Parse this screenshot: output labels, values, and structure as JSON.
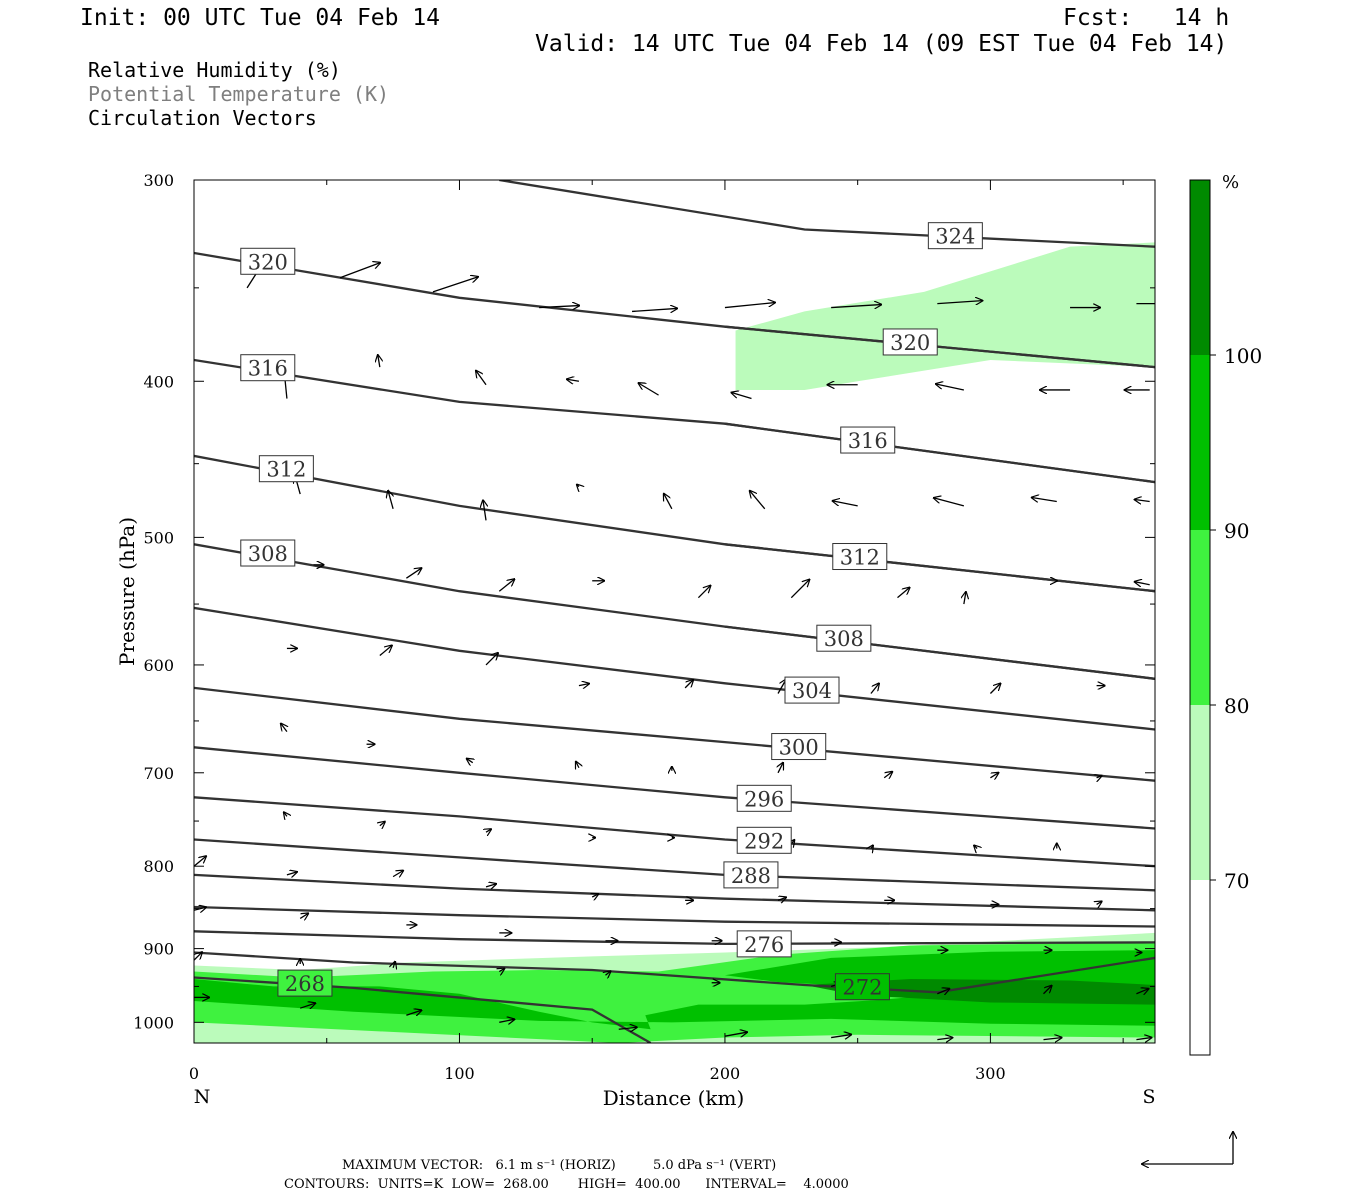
{
  "header": {
    "init": "Init: 00 UTC Tue 04 Feb 14",
    "fcst": "Fcst:   14 h",
    "valid": "Valid: 14 UTC Tue 04 Feb 14 (09 EST Tue 04 Feb 14)"
  },
  "legend_lines": [
    {
      "text": "Relative Humidity (%)",
      "color": "#000000"
    },
    {
      "text": "Potential Temperature (K)",
      "color": "#7f7f7f"
    },
    {
      "text": "Circulation Vectors",
      "color": "#000000"
    }
  ],
  "footer": {
    "line1": "MAXIMUM VECTOR:   6.1 m s⁻¹ (HORIZ)         5.0 dPa s⁻¹ (VERT)",
    "line2": "CONTOURS:  UNITS=K  LOW=  268.00       HIGH=  400.00      INTERVAL=    4.0000"
  },
  "colors": {
    "rh70": "#bbfbbb",
    "rh80": "#3ff23f",
    "rh90": "#00c000",
    "rh100": "#008a00",
    "contour": "#333333",
    "vector": "#000000"
  },
  "chart_data": {
    "type": "cross-section",
    "xlabel": "Distance (km)",
    "ylabel": "Pressure (hPa)",
    "xlim": [
      0,
      362
    ],
    "ylim": [
      300,
      1030
    ],
    "y_log": true,
    "x_ticks": [
      0,
      100,
      200,
      300
    ],
    "y_ticks": [
      300,
      400,
      500,
      600,
      700,
      800,
      900,
      1000
    ],
    "x_end_labels": {
      "left": "N",
      "right": "S"
    },
    "colorbar": {
      "unit": "%",
      "levels": [
        70,
        80,
        90,
        100
      ],
      "colors": [
        "#ffffff",
        "#bbfbbb",
        "#3ff23f",
        "#00c000",
        "#008a00"
      ]
    },
    "theta_contours": [
      {
        "value": 324,
        "points": [
          [
            115,
            300
          ],
          [
            230,
            322
          ],
          [
            362,
            330
          ]
        ],
        "label_x": 277
      },
      {
        "value": 320,
        "points": [
          [
            0,
            333
          ],
          [
            100,
            355
          ],
          [
            200,
            370
          ],
          [
            362,
            392
          ]
        ],
        "label_x": 18
      },
      {
        "value": 320,
        "points": [
          [
            200,
            370
          ],
          [
            362,
            392
          ]
        ],
        "label_x": 260
      },
      {
        "value": 316,
        "points": [
          [
            0,
            388
          ],
          [
            100,
            412
          ],
          [
            200,
            425
          ],
          [
            362,
            462
          ]
        ],
        "label_x": 18
      },
      {
        "value": 316,
        "points": [
          [
            200,
            425
          ],
          [
            362,
            462
          ]
        ],
        "label_x": 244
      },
      {
        "value": 312,
        "points": [
          [
            0,
            445
          ],
          [
            100,
            478
          ],
          [
            200,
            505
          ],
          [
            362,
            540
          ]
        ],
        "label_x": 25
      },
      {
        "value": 312,
        "points": [
          [
            200,
            505
          ],
          [
            362,
            540
          ]
        ],
        "label_x": 241
      },
      {
        "value": 308,
        "points": [
          [
            0,
            505
          ],
          [
            100,
            540
          ],
          [
            200,
            568
          ],
          [
            362,
            612
          ]
        ],
        "label_x": 18
      },
      {
        "value": 308,
        "points": [
          [
            200,
            568
          ],
          [
            362,
            612
          ]
        ],
        "label_x": 235
      },
      {
        "value": 304,
        "points": [
          [
            0,
            553
          ],
          [
            100,
            588
          ],
          [
            200,
            616
          ],
          [
            362,
            658
          ]
        ],
        "label_x": 223
      },
      {
        "value": 300,
        "points": [
          [
            0,
            620
          ],
          [
            100,
            648
          ],
          [
            200,
            670
          ],
          [
            362,
            708
          ]
        ],
        "label_x": 218
      },
      {
        "value": 296,
        "points": [
          [
            0,
            675
          ],
          [
            100,
            700
          ],
          [
            200,
            725
          ],
          [
            362,
            758
          ]
        ],
        "label_x": 205
      },
      {
        "value": 292,
        "points": [
          [
            0,
            725
          ],
          [
            100,
            745
          ],
          [
            200,
            770
          ],
          [
            362,
            800
          ]
        ],
        "label_x": 205
      },
      {
        "value": 288,
        "points": [
          [
            0,
            770
          ],
          [
            100,
            790
          ],
          [
            200,
            810
          ],
          [
            362,
            828
          ]
        ],
        "label_x": 200
      },
      {
        "value": 284,
        "points": [
          [
            0,
            810
          ],
          [
            100,
            826
          ],
          [
            200,
            838
          ],
          [
            362,
            852
          ]
        ],
        "label_x": null
      },
      {
        "value": 280,
        "points": [
          [
            0,
            848
          ],
          [
            100,
            858
          ],
          [
            200,
            866
          ],
          [
            362,
            872
          ]
        ],
        "label_x": null
      },
      {
        "value": 276,
        "points": [
          [
            0,
            878
          ],
          [
            100,
            888
          ],
          [
            200,
            894
          ],
          [
            362,
            892
          ]
        ],
        "label_x": 205
      },
      {
        "value": 272,
        "points": [
          [
            0,
            905
          ],
          [
            60,
            918
          ],
          [
            150,
            928
          ],
          [
            230,
            948
          ],
          [
            280,
            958
          ],
          [
            362,
            912
          ]
        ],
        "label_x": 242
      },
      {
        "value": 268,
        "points": [
          [
            0,
            938
          ],
          [
            60,
            952
          ],
          [
            150,
            982
          ],
          [
            172,
            1030
          ]
        ],
        "label_x": 32
      }
    ],
    "rh_regions": [
      {
        "level": 70,
        "points": [
          [
            0,
            922
          ],
          [
            40,
            928
          ],
          [
            80,
            918
          ],
          [
            150,
            910
          ],
          [
            200,
            905
          ],
          [
            260,
            898
          ],
          [
            362,
            880
          ],
          [
            362,
            1030
          ],
          [
            0,
            1030
          ]
        ]
      },
      {
        "level": 70,
        "points": [
          [
            204,
            372
          ],
          [
            230,
            362
          ],
          [
            275,
            352
          ],
          [
            330,
            330
          ],
          [
            362,
            328
          ],
          [
            362,
            392
          ],
          [
            300,
            388
          ],
          [
            250,
            400
          ],
          [
            230,
            405
          ],
          [
            204,
            405
          ]
        ]
      },
      {
        "level": 80,
        "points": [
          [
            0,
            930
          ],
          [
            40,
            938
          ],
          [
            90,
            930
          ],
          [
            130,
            928
          ],
          [
            175,
            930
          ],
          [
            220,
            908
          ],
          [
            270,
            896
          ],
          [
            362,
            892
          ],
          [
            362,
            1022
          ],
          [
            250,
            1018
          ],
          [
            200,
            1022
          ],
          [
            160,
            1030
          ],
          [
            0,
            1000
          ]
        ]
      },
      {
        "level": 90,
        "points": [
          [
            0,
            940
          ],
          [
            30,
            950
          ],
          [
            70,
            950
          ],
          [
            100,
            960
          ],
          [
            130,
            985
          ],
          [
            150,
            1000
          ],
          [
            172,
            1010
          ],
          [
            170,
            990
          ],
          [
            190,
            975
          ],
          [
            230,
            975
          ],
          [
            260,
            968
          ],
          [
            290,
            958
          ],
          [
            362,
            960
          ],
          [
            362,
            1005
          ],
          [
            300,
            1002
          ],
          [
            240,
            995
          ],
          [
            180,
            1000
          ],
          [
            130,
            998
          ],
          [
            60,
            985
          ],
          [
            0,
            970
          ]
        ]
      },
      {
        "level": 90,
        "points": [
          [
            200,
            935
          ],
          [
            240,
            912
          ],
          [
            300,
            904
          ],
          [
            362,
            902
          ],
          [
            362,
            960
          ],
          [
            300,
            958
          ],
          [
            260,
            952
          ],
          [
            220,
            944
          ]
        ]
      },
      {
        "level": 100,
        "points": [
          [
            230,
            948
          ],
          [
            270,
            940
          ],
          [
            330,
            942
          ],
          [
            362,
            948
          ],
          [
            362,
            975
          ],
          [
            300,
            972
          ],
          [
            250,
            962
          ]
        ]
      }
    ],
    "vectors": [
      [
        20,
        350,
        16,
        -25
      ],
      [
        55,
        345,
        40,
        -15
      ],
      [
        90,
        352,
        45,
        -15
      ],
      [
        130,
        360,
        40,
        -2
      ],
      [
        165,
        362,
        45,
        -3
      ],
      [
        200,
        360,
        50,
        -5
      ],
      [
        240,
        360,
        50,
        -3
      ],
      [
        280,
        358,
        45,
        -3
      ],
      [
        330,
        360,
        30,
        0
      ],
      [
        355,
        358,
        40,
        0
      ],
      [
        35,
        410,
        -3,
        -30
      ],
      [
        70,
        392,
        -2,
        -12
      ],
      [
        110,
        402,
        -10,
        -14
      ],
      [
        145,
        400,
        -12,
        -2
      ],
      [
        175,
        408,
        -20,
        -12
      ],
      [
        210,
        410,
        -20,
        -6
      ],
      [
        250,
        402,
        -30,
        0
      ],
      [
        290,
        405,
        -28,
        -6
      ],
      [
        330,
        405,
        -30,
        0
      ],
      [
        360,
        405,
        -25,
        0
      ],
      [
        40,
        470,
        -5,
        -18
      ],
      [
        75,
        480,
        -5,
        -18
      ],
      [
        110,
        488,
        -3,
        -20
      ],
      [
        145,
        465,
        -2,
        -2
      ],
      [
        180,
        480,
        -8,
        -15
      ],
      [
        215,
        480,
        -15,
        -18
      ],
      [
        250,
        478,
        -25,
        -5
      ],
      [
        290,
        478,
        -30,
        -8
      ],
      [
        325,
        475,
        -25,
        -4
      ],
      [
        360,
        475,
        -15,
        -2
      ],
      [
        45,
        520,
        10,
        0
      ],
      [
        80,
        530,
        15,
        -10
      ],
      [
        115,
        540,
        15,
        -12
      ],
      [
        150,
        532,
        12,
        0
      ],
      [
        190,
        545,
        12,
        -12
      ],
      [
        225,
        545,
        18,
        -18
      ],
      [
        265,
        545,
        12,
        -10
      ],
      [
        290,
        550,
        2,
        -12
      ],
      [
        325,
        532,
        0,
        0
      ],
      [
        360,
        535,
        -15,
        -3
      ],
      [
        35,
        586,
        10,
        0
      ],
      [
        70,
        592,
        12,
        -10
      ],
      [
        110,
        600,
        12,
        -12
      ],
      [
        145,
        618,
        10,
        -2
      ],
      [
        185,
        620,
        8,
        -8
      ],
      [
        220,
        625,
        8,
        -14
      ],
      [
        255,
        625,
        8,
        -10
      ],
      [
        300,
        625,
        10,
        -10
      ],
      [
        340,
        618,
        8,
        0
      ],
      [
        35,
        660,
        -6,
        -8
      ],
      [
        65,
        672,
        8,
        0
      ],
      [
        105,
        690,
        -6,
        -4
      ],
      [
        145,
        695,
        -3,
        -6
      ],
      [
        180,
        698,
        0,
        -4
      ],
      [
        220,
        700,
        5,
        -10
      ],
      [
        260,
        705,
        8,
        -6
      ],
      [
        300,
        705,
        8,
        -5
      ],
      [
        340,
        705,
        5,
        -2
      ],
      [
        35,
        745,
        -3,
        -4
      ],
      [
        70,
        755,
        5,
        -4
      ],
      [
        110,
        762,
        5,
        -3
      ],
      [
        150,
        768,
        3,
        0
      ],
      [
        180,
        768,
        2,
        0
      ],
      [
        225,
        775,
        3,
        -4
      ],
      [
        255,
        780,
        2,
        -3
      ],
      [
        295,
        780,
        -3,
        -3
      ],
      [
        325,
        780,
        0,
        -5
      ],
      [
        0,
        800,
        12,
        -10
      ],
      [
        35,
        810,
        10,
        -3
      ],
      [
        75,
        812,
        10,
        -6
      ],
      [
        110,
        824,
        10,
        -3
      ],
      [
        150,
        836,
        6,
        -3
      ],
      [
        185,
        840,
        8,
        0
      ],
      [
        220,
        840,
        8,
        -3
      ],
      [
        260,
        840,
        10,
        0
      ],
      [
        300,
        845,
        8,
        0
      ],
      [
        340,
        845,
        5,
        -3
      ],
      [
        0,
        852,
        12,
        -3
      ],
      [
        40,
        862,
        8,
        -5
      ],
      [
        80,
        870,
        10,
        0
      ],
      [
        115,
        880,
        12,
        0
      ],
      [
        155,
        890,
        12,
        0
      ],
      [
        195,
        890,
        10,
        0
      ],
      [
        240,
        892,
        10,
        0
      ],
      [
        280,
        902,
        10,
        0
      ],
      [
        320,
        902,
        8,
        0
      ],
      [
        355,
        905,
        5,
        0
      ],
      [
        0,
        915,
        8,
        -8
      ],
      [
        40,
        920,
        0,
        -5
      ],
      [
        75,
        925,
        2,
        -6
      ],
      [
        115,
        930,
        5,
        -3
      ],
      [
        155,
        935,
        5,
        -4
      ],
      [
        195,
        945,
        8,
        0
      ],
      [
        240,
        950,
        10,
        -3
      ],
      [
        280,
        960,
        12,
        -5
      ],
      [
        320,
        960,
        8,
        -8
      ],
      [
        355,
        960,
        12,
        -5
      ],
      [
        0,
        965,
        15,
        0
      ],
      [
        40,
        980,
        15,
        -5
      ],
      [
        80,
        990,
        15,
        -5
      ],
      [
        115,
        1000,
        15,
        -3
      ],
      [
        160,
        1010,
        18,
        -2
      ],
      [
        200,
        1020,
        22,
        -4
      ],
      [
        240,
        1022,
        20,
        -3
      ],
      [
        280,
        1025,
        15,
        -2
      ],
      [
        320,
        1025,
        18,
        -2
      ],
      [
        355,
        1025,
        15,
        -2
      ]
    ]
  }
}
